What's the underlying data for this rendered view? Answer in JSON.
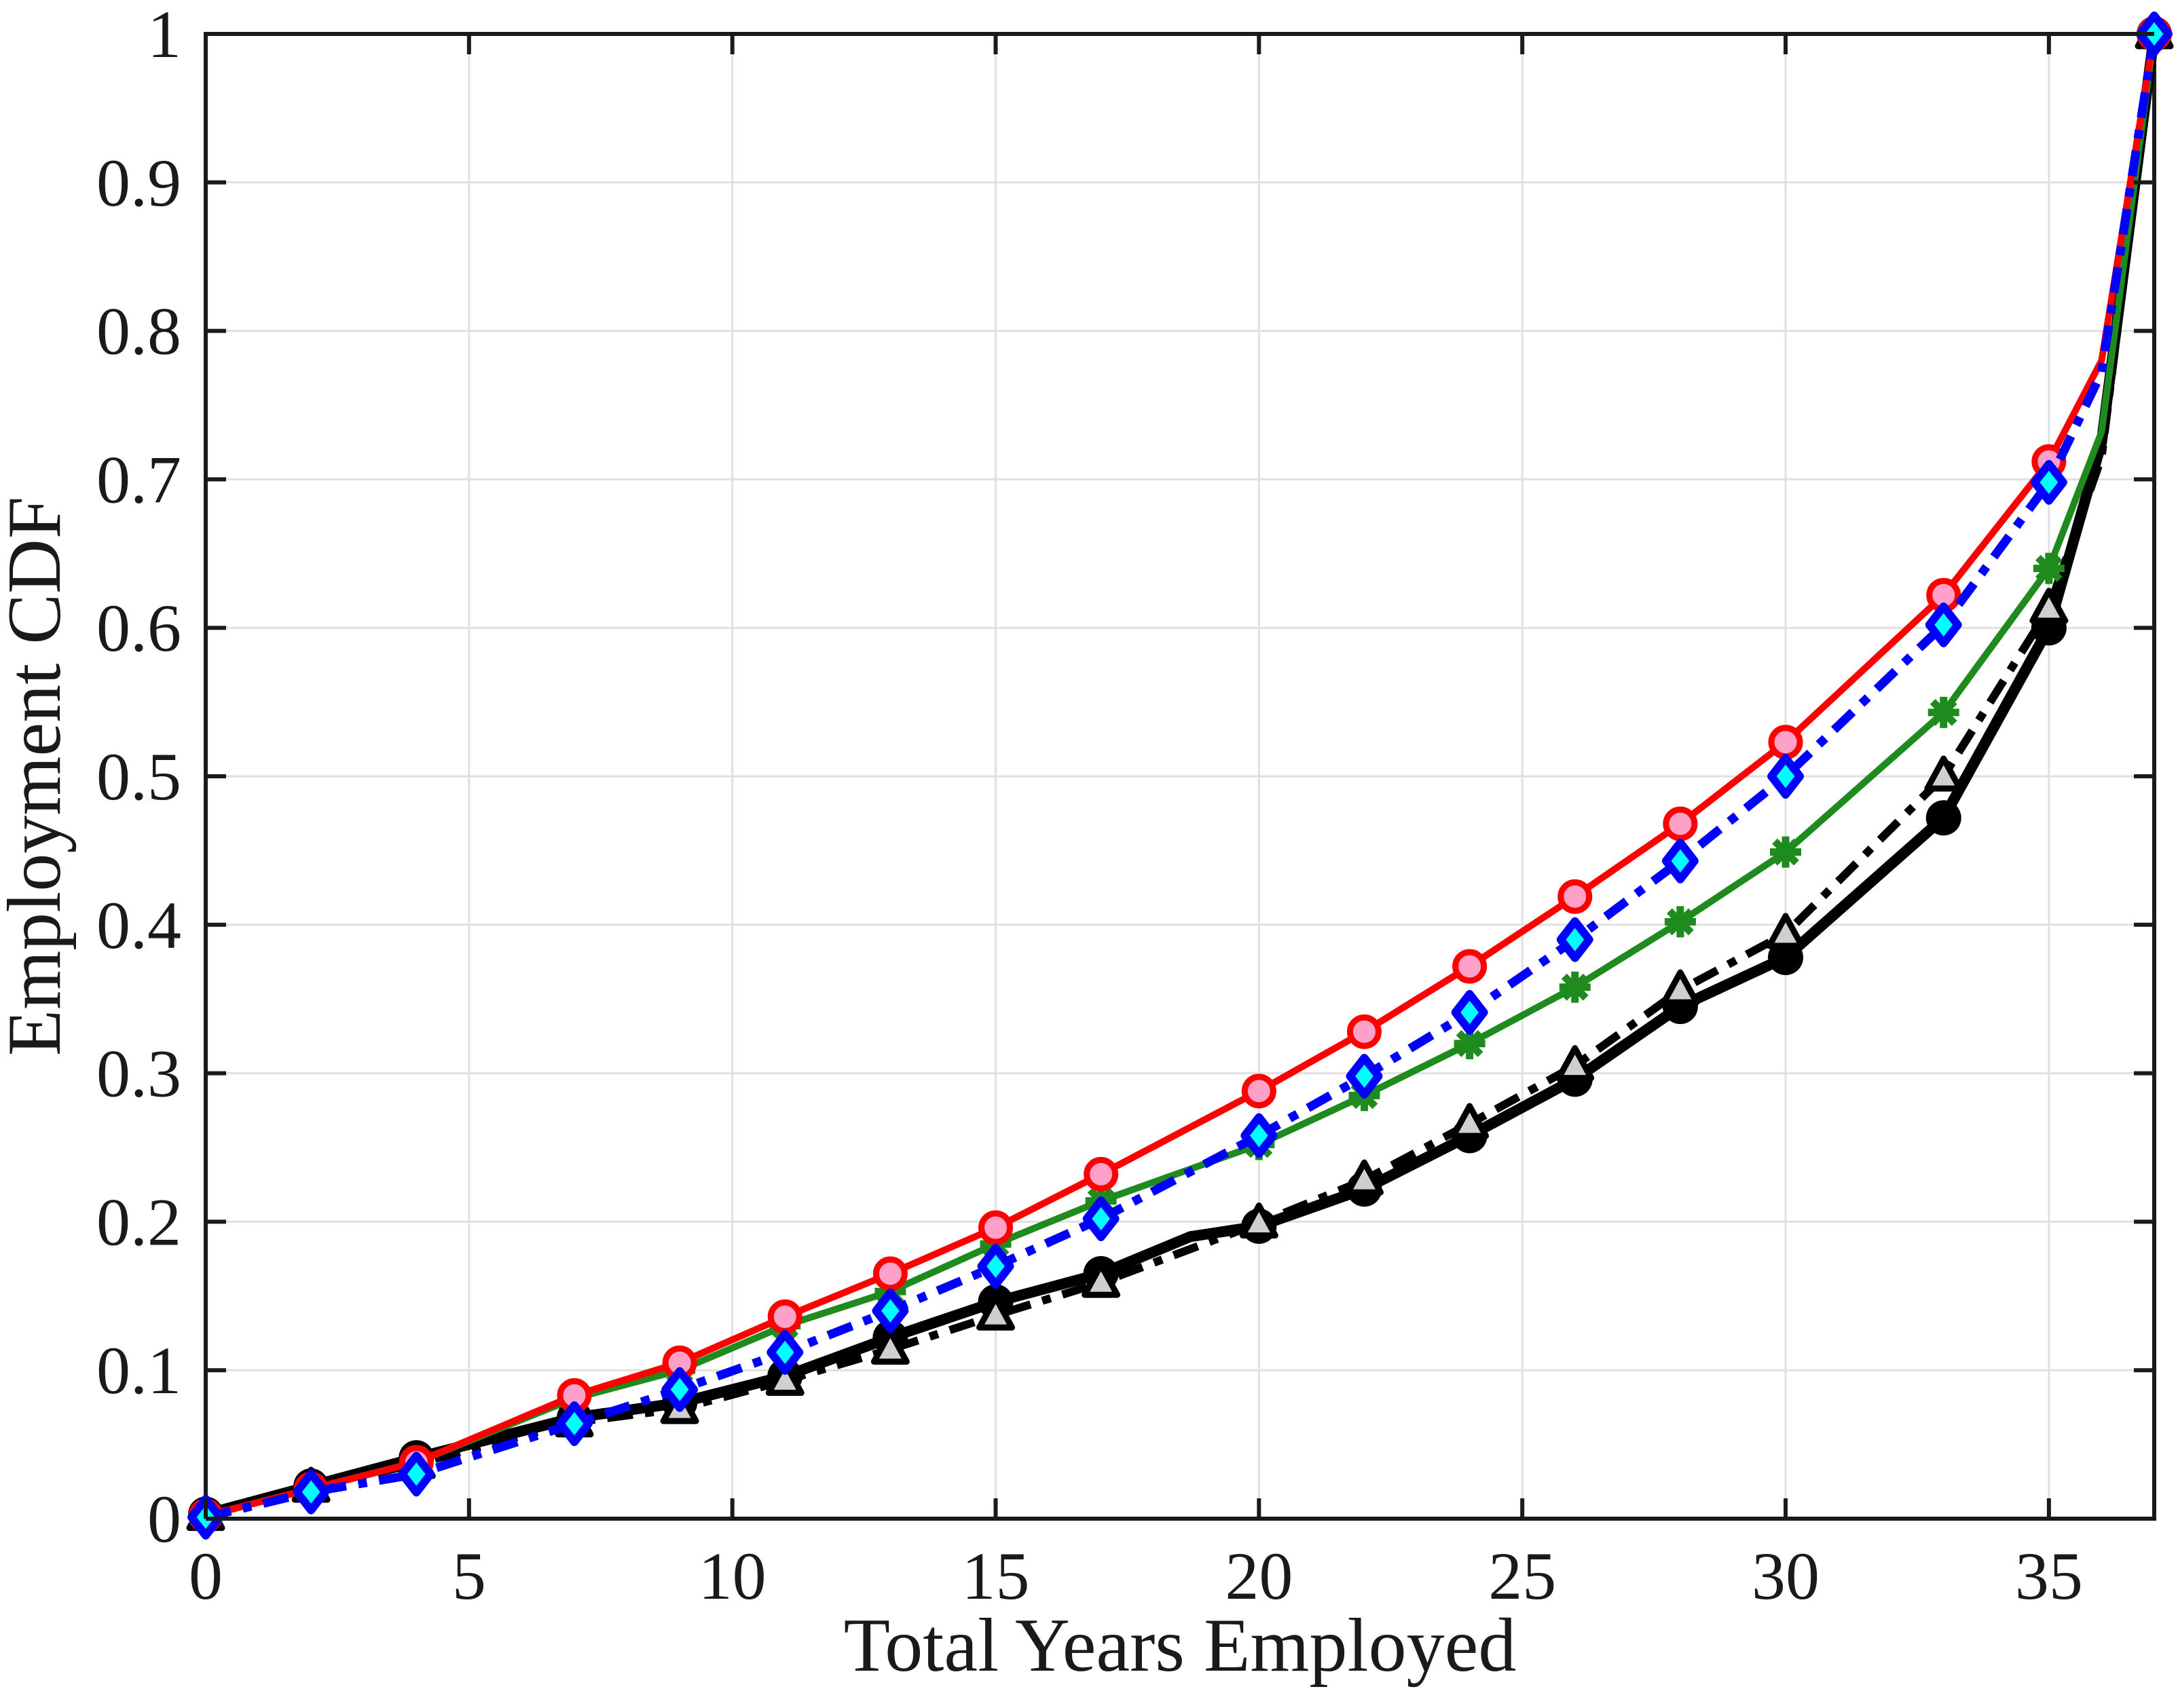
{
  "chart_data": {
    "type": "line",
    "title": "",
    "xlabel": "Total Years Employed",
    "ylabel": "Employment CDF",
    "xlim": [
      0,
      37
    ],
    "ylim": [
      0,
      1
    ],
    "xticks": [
      0,
      5,
      10,
      15,
      20,
      25,
      30,
      35
    ],
    "xtick_labels": [
      "0",
      "5",
      "10",
      "15",
      "20",
      "25",
      "30",
      "35"
    ],
    "yticks": [
      0,
      0.1,
      0.2,
      0.3,
      0.4,
      0.5,
      0.6,
      0.7,
      0.8,
      0.9,
      1
    ],
    "ytick_labels": [
      "0",
      "0.1",
      "0.2",
      "0.3",
      "0.4",
      "0.5",
      "0.6",
      "0.7",
      "0.8",
      "0.9",
      "1"
    ],
    "grid": true,
    "grid_color": "#e0e0e0",
    "axis_color": "#1a1a1a",
    "background": "#ffffff",
    "legend": "none",
    "series": [
      {
        "name": "black-solid-circles",
        "line_style": "solid",
        "line_color": "#000000",
        "line_width": 16,
        "marker": "filled-circle",
        "marker_fill": "#000000",
        "points": [
          [
            0,
            0.003
          ],
          [
            2,
            0.022
          ],
          [
            4,
            0.041
          ],
          [
            7,
            0.068
          ],
          [
            9,
            0.078
          ],
          [
            11,
            0.096
          ],
          [
            13,
            0.122
          ],
          [
            15,
            0.146
          ],
          [
            17,
            0.165
          ],
          [
            18.7,
            0.19
          ],
          [
            20,
            0.197
          ],
          [
            22,
            0.222
          ],
          [
            24,
            0.258
          ],
          [
            26,
            0.296
          ],
          [
            28,
            0.345
          ],
          [
            30,
            0.378
          ],
          [
            33,
            0.472
          ],
          [
            35,
            0.6
          ],
          [
            36,
            0.725
          ],
          [
            37,
            1
          ]
        ],
        "marker_points": [
          [
            0,
            0.003
          ],
          [
            2,
            0.022
          ],
          [
            4,
            0.041
          ],
          [
            7,
            0.068
          ],
          [
            9,
            0.078
          ],
          [
            11,
            0.096
          ],
          [
            13,
            0.122
          ],
          [
            15,
            0.146
          ],
          [
            17,
            0.165
          ],
          [
            20,
            0.197
          ],
          [
            22,
            0.222
          ],
          [
            24,
            0.258
          ],
          [
            26,
            0.296
          ],
          [
            28,
            0.345
          ],
          [
            30,
            0.378
          ],
          [
            33,
            0.472
          ],
          [
            35,
            0.6
          ],
          [
            37,
            1
          ]
        ]
      },
      {
        "name": "black-dashdot-triangles",
        "line_style": "dash-dot",
        "line_color": "#000000",
        "line_width": 12,
        "marker": "triangle",
        "marker_fill": "#cfcfcf",
        "points": [
          [
            0,
            0.002
          ],
          [
            2,
            0.021
          ],
          [
            4,
            0.037
          ],
          [
            7,
            0.065
          ],
          [
            9,
            0.074
          ],
          [
            11,
            0.093
          ],
          [
            13,
            0.114
          ],
          [
            15,
            0.137
          ],
          [
            17,
            0.159
          ],
          [
            20,
            0.199
          ],
          [
            22,
            0.228
          ],
          [
            24,
            0.266
          ],
          [
            26,
            0.305
          ],
          [
            28,
            0.356
          ],
          [
            30,
            0.394
          ],
          [
            33,
            0.5
          ],
          [
            35,
            0.613
          ],
          [
            36,
            0.715
          ],
          [
            37,
            1
          ]
        ],
        "marker_points": [
          [
            0,
            0.002
          ],
          [
            2,
            0.021
          ],
          [
            4,
            0.037
          ],
          [
            7,
            0.065
          ],
          [
            9,
            0.074
          ],
          [
            11,
            0.093
          ],
          [
            13,
            0.114
          ],
          [
            15,
            0.137
          ],
          [
            17,
            0.159
          ],
          [
            20,
            0.199
          ],
          [
            22,
            0.228
          ],
          [
            24,
            0.266
          ],
          [
            26,
            0.305
          ],
          [
            28,
            0.356
          ],
          [
            30,
            0.394
          ],
          [
            33,
            0.5
          ],
          [
            35,
            0.613
          ],
          [
            37,
            1
          ]
        ]
      },
      {
        "name": "green-solid-stars",
        "line_style": "solid",
        "line_color": "#1f8b1f",
        "line_width": 10,
        "marker": "star",
        "marker_fill": "#1f8b1f",
        "points": [
          [
            0,
            0.002
          ],
          [
            2,
            0.02
          ],
          [
            4,
            0.038
          ],
          [
            7,
            0.081
          ],
          [
            9,
            0.1
          ],
          [
            11,
            0.13
          ],
          [
            13,
            0.153
          ],
          [
            15,
            0.185
          ],
          [
            17,
            0.214
          ],
          [
            20,
            0.252
          ],
          [
            22,
            0.285
          ],
          [
            24,
            0.32
          ],
          [
            26,
            0.358
          ],
          [
            28,
            0.402
          ],
          [
            30,
            0.449
          ],
          [
            33,
            0.543
          ],
          [
            35,
            0.64
          ],
          [
            36,
            0.732
          ],
          [
            37,
            1
          ]
        ],
        "marker_points": [
          [
            0,
            0.002
          ],
          [
            2,
            0.02
          ],
          [
            4,
            0.038
          ],
          [
            7,
            0.081
          ],
          [
            9,
            0.1
          ],
          [
            11,
            0.13
          ],
          [
            13,
            0.153
          ],
          [
            15,
            0.185
          ],
          [
            17,
            0.214
          ],
          [
            20,
            0.252
          ],
          [
            22,
            0.285
          ],
          [
            24,
            0.32
          ],
          [
            26,
            0.358
          ],
          [
            28,
            0.402
          ],
          [
            30,
            0.449
          ],
          [
            33,
            0.543
          ],
          [
            35,
            0.64
          ],
          [
            37,
            1
          ]
        ]
      },
      {
        "name": "red-solid-circles",
        "line_style": "solid",
        "line_color": "#ff0000",
        "line_width": 10,
        "marker": "circle",
        "marker_fill": "#ffa0c8",
        "points": [
          [
            0,
            0.002
          ],
          [
            2,
            0.02
          ],
          [
            4,
            0.038
          ],
          [
            7,
            0.083
          ],
          [
            9,
            0.105
          ],
          [
            11,
            0.136
          ],
          [
            13,
            0.165
          ],
          [
            15,
            0.196
          ],
          [
            17,
            0.232
          ],
          [
            20,
            0.288
          ],
          [
            22,
            0.328
          ],
          [
            24,
            0.372
          ],
          [
            26,
            0.419
          ],
          [
            28,
            0.468
          ],
          [
            30,
            0.523
          ],
          [
            33,
            0.622
          ],
          [
            35,
            0.712
          ],
          [
            36,
            0.78
          ],
          [
            37,
            1
          ]
        ],
        "marker_points": [
          [
            0,
            0.002
          ],
          [
            2,
            0.02
          ],
          [
            4,
            0.038
          ],
          [
            7,
            0.083
          ],
          [
            9,
            0.105
          ],
          [
            11,
            0.136
          ],
          [
            13,
            0.165
          ],
          [
            15,
            0.196
          ],
          [
            17,
            0.232
          ],
          [
            20,
            0.288
          ],
          [
            22,
            0.328
          ],
          [
            24,
            0.372
          ],
          [
            26,
            0.419
          ],
          [
            28,
            0.468
          ],
          [
            30,
            0.523
          ],
          [
            33,
            0.622
          ],
          [
            35,
            0.712
          ],
          [
            37,
            1
          ]
        ]
      },
      {
        "name": "blue-dashdot-diamonds",
        "line_style": "dash-dot",
        "line_color": "#0000ff",
        "line_width": 13,
        "marker": "diamond",
        "marker_fill": "#00ffff",
        "points": [
          [
            0,
            0.001
          ],
          [
            2,
            0.018
          ],
          [
            4,
            0.03
          ],
          [
            7,
            0.064
          ],
          [
            9,
            0.087
          ],
          [
            11,
            0.112
          ],
          [
            13,
            0.14
          ],
          [
            15,
            0.17
          ],
          [
            17,
            0.202
          ],
          [
            20,
            0.258
          ],
          [
            22,
            0.298
          ],
          [
            24,
            0.341
          ],
          [
            26,
            0.39
          ],
          [
            28,
            0.443
          ],
          [
            30,
            0.5
          ],
          [
            33,
            0.602
          ],
          [
            35,
            0.698
          ],
          [
            36,
            0.772
          ],
          [
            37,
            1
          ]
        ],
        "marker_points": [
          [
            0,
            0.001
          ],
          [
            2,
            0.018
          ],
          [
            4,
            0.03
          ],
          [
            7,
            0.064
          ],
          [
            9,
            0.087
          ],
          [
            11,
            0.112
          ],
          [
            13,
            0.14
          ],
          [
            15,
            0.17
          ],
          [
            17,
            0.202
          ],
          [
            20,
            0.258
          ],
          [
            22,
            0.298
          ],
          [
            24,
            0.341
          ],
          [
            26,
            0.39
          ],
          [
            28,
            0.443
          ],
          [
            30,
            0.5
          ],
          [
            33,
            0.602
          ],
          [
            35,
            0.698
          ],
          [
            37,
            1
          ]
        ]
      }
    ]
  }
}
